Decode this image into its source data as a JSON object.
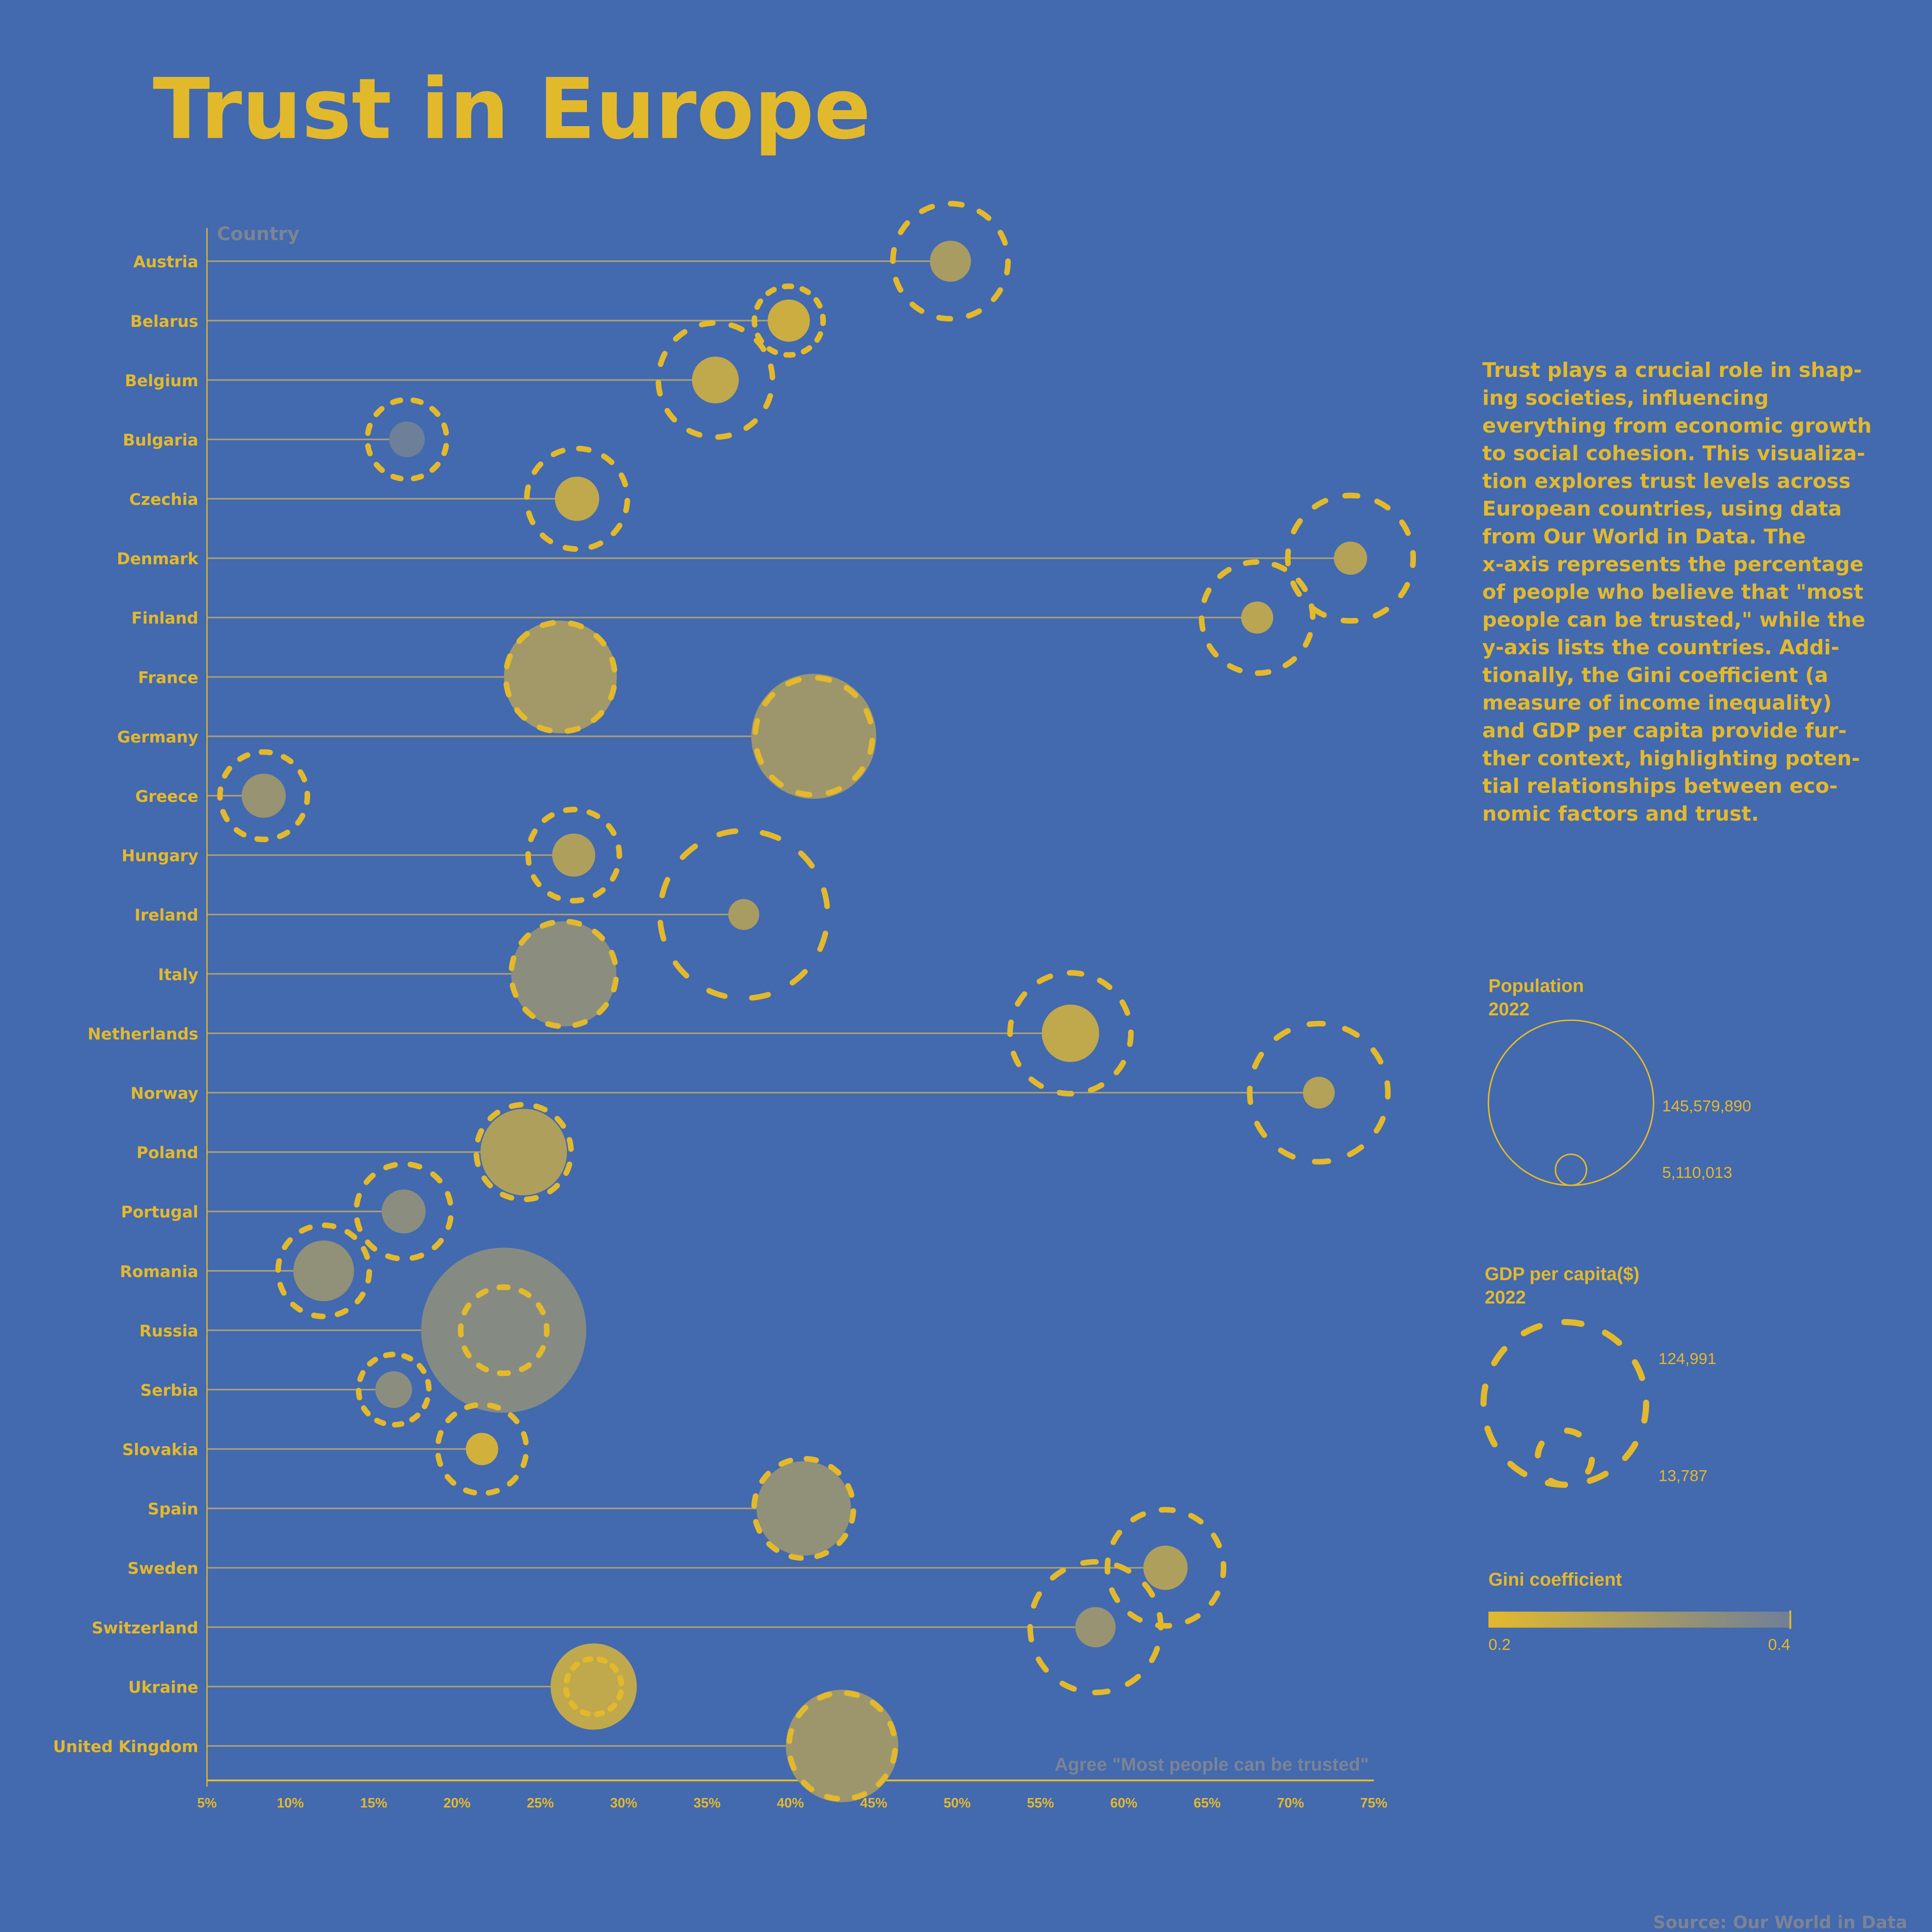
{
  "title": "Trust in Europe",
  "description_lines": [
    "Trust plays a crucial role in shap-",
    "ing societies, influencing",
    "everything from economic growth",
    "to social cohesion. This visualiza-",
    "tion explores trust levels across",
    "European countries, using data",
    "from Our World in Data. The",
    "x-axis represents the percentage",
    "of people who believe that \"most",
    "people can be trusted,\" while the",
    "y-axis lists the countries. Addi-",
    "tionally, the Gini coefficient (a",
    "measure of income inequality)",
    "and GDP per capita provide fur-",
    "ther context, highlighting poten-",
    "tial relationships between eco-",
    "nomic factors and trust."
  ],
  "source": "Source: Our World in Data",
  "colors": {
    "background": "#4369ae",
    "accent": "#e3b92c",
    "gini_low": "#e3b92c",
    "gini_high": "#6e7f99",
    "muted": "#7b8496"
  },
  "legend": {
    "population": {
      "title_line1": "Population",
      "title_line2": "2022",
      "max_label": "145,579,890",
      "min_label": "5,110,013",
      "max": 145579890,
      "min": 5110013
    },
    "gdp": {
      "title_line1": "GDP per capita($)",
      "title_line2": "2022",
      "max_label": "124,991",
      "min_label": "13,787",
      "max": 124991,
      "min": 13787
    },
    "gini": {
      "title": "Gini coefficient",
      "min_label": "0.2",
      "max_label": "0.4",
      "min": 0.2,
      "max": 0.4
    }
  },
  "chart_data": {
    "type": "scatter",
    "ylabel": "Country",
    "xlabel": "Agree \"Most people can be trusted\"",
    "xlim": [
      5,
      75
    ],
    "x_ticks": [
      "5%",
      "10%",
      "15%",
      "20%",
      "25%",
      "30%",
      "35%",
      "40%",
      "45%",
      "50%",
      "55%",
      "60%",
      "65%",
      "70%",
      "75%"
    ],
    "grid": false,
    "countries": [
      {
        "name": "Austria",
        "trust": 49.6,
        "population": 9000000,
        "gdp": 59000,
        "gini": 0.3
      },
      {
        "name": "Belarus",
        "trust": 39.9,
        "population": 9500000,
        "gdp": 21000,
        "gini": 0.24
      },
      {
        "name": "Belgium",
        "trust": 35.5,
        "population": 11700000,
        "gdp": 58000,
        "gini": 0.26
      },
      {
        "name": "Bulgaria",
        "trust": 17.0,
        "population": 6800000,
        "gdp": 28000,
        "gini": 0.4
      },
      {
        "name": "Czechia",
        "trust": 27.2,
        "population": 10500000,
        "gdp": 45000,
        "gini": 0.26
      },
      {
        "name": "Denmark",
        "trust": 73.6,
        "population": 5900000,
        "gdp": 70000,
        "gini": 0.28
      },
      {
        "name": "Finland",
        "trust": 68.0,
        "population": 5500000,
        "gdp": 55000,
        "gini": 0.27
      },
      {
        "name": "France",
        "trust": 26.2,
        "population": 67900000,
        "gdp": 53000,
        "gini": 0.31
      },
      {
        "name": "Germany",
        "trust": 41.4,
        "population": 83400000,
        "gdp": 61000,
        "gini": 0.32
      },
      {
        "name": "Greece",
        "trust": 8.4,
        "population": 10400000,
        "gdp": 34000,
        "gini": 0.33
      },
      {
        "name": "Hungary",
        "trust": 27.0,
        "population": 9900000,
        "gdp": 37000,
        "gini": 0.29
      },
      {
        "name": "Ireland",
        "trust": 37.2,
        "population": 5110013,
        "gdp": 124991,
        "gini": 0.3
      },
      {
        "name": "Italy",
        "trust": 26.4,
        "population": 59000000,
        "gdp": 49000,
        "gini": 0.35
      },
      {
        "name": "Netherlands",
        "trust": 56.8,
        "population": 17600000,
        "gdp": 65000,
        "gini": 0.26
      },
      {
        "name": "Norway",
        "trust": 71.7,
        "population": 5400000,
        "gdp": 85000,
        "gini": 0.28
      },
      {
        "name": "Poland",
        "trust": 24.0,
        "population": 39900000,
        "gdp": 40000,
        "gini": 0.29
      },
      {
        "name": "Portugal",
        "trust": 16.8,
        "population": 10300000,
        "gdp": 40000,
        "gini": 0.35
      },
      {
        "name": "Romania",
        "trust": 12.0,
        "population": 19700000,
        "gdp": 37000,
        "gini": 0.34
      },
      {
        "name": "Russia",
        "trust": 22.8,
        "population": 145579890,
        "gdp": 33000,
        "gini": 0.36
      },
      {
        "name": "Serbia",
        "trust": 16.2,
        "population": 7200000,
        "gdp": 22000,
        "gini": 0.35
      },
      {
        "name": "Slovakia",
        "trust": 21.5,
        "population": 5600000,
        "gdp": 35000,
        "gini": 0.23
      },
      {
        "name": "Spain",
        "trust": 40.8,
        "population": 47600000,
        "gdp": 44000,
        "gini": 0.34
      },
      {
        "name": "Sweden",
        "trust": 62.5,
        "population": 10500000,
        "gdp": 60000,
        "gini": 0.29
      },
      {
        "name": "Switzerland",
        "trust": 58.3,
        "population": 8700000,
        "gdp": 76000,
        "gini": 0.33
      },
      {
        "name": "Ukraine",
        "trust": 28.2,
        "population": 39700000,
        "gdp": 13787,
        "gini": 0.26
      },
      {
        "name": "United Kingdom",
        "trust": 43.1,
        "population": 67500000,
        "gdp": 50000,
        "gini": 0.32
      }
    ]
  }
}
